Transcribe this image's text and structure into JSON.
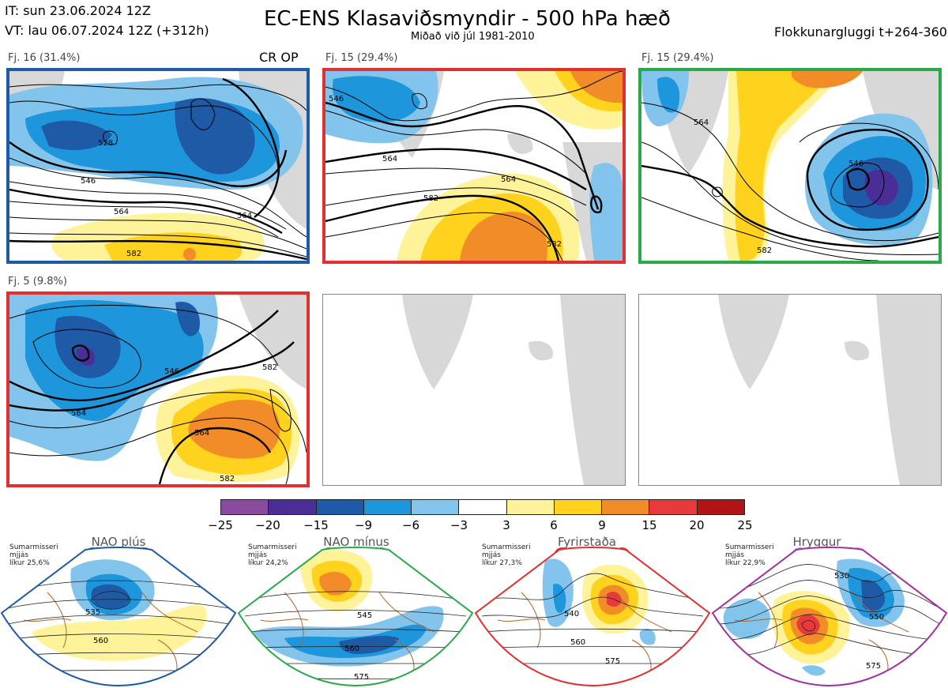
{
  "header": {
    "it_line": "IT: sun 23.06.2024 12Z",
    "vt_line": "VT: lau 06.07.2024 12Z  (+312h)",
    "title": "EC-ENS Klasaviðsmyndir - 500 hPa hæð",
    "subtitle": "Miðað við júl 1981-2010",
    "window": "Flokkunargluggi t+264-360"
  },
  "panels": [
    {
      "label": "Fj. 16 (31.4%)",
      "tag": "CR OP",
      "border_color": "#1f5aa6",
      "contours": [
        "528",
        "546",
        "564",
        "564",
        "582"
      ]
    },
    {
      "label": "Fj. 15 (29.4%)",
      "border_color": "#e03030",
      "contours": [
        "546",
        "564",
        "564",
        "582",
        "582"
      ]
    },
    {
      "label": "Fj. 15 (29.4%)",
      "border_color": "#2aa84a",
      "contours": [
        "546",
        "564",
        "582"
      ]
    },
    {
      "label": "Fj. 5 (9.8%)",
      "border_color": "#e03030",
      "contours": [
        "546",
        "564",
        "564",
        "582",
        "582"
      ]
    },
    {
      "label": "",
      "border_color": ""
    },
    {
      "label": "",
      "border_color": ""
    }
  ],
  "colorbar": {
    "colors": [
      "#8a4aa0",
      "#4a2d96",
      "#1f5aa6",
      "#1e96dc",
      "#82c4ec",
      "#ffffff",
      "#fff39a",
      "#ffd21e",
      "#f28c28",
      "#e83a3a",
      "#b01414"
    ],
    "ticks": [
      "−25",
      "−20",
      "−15",
      "−9",
      "−6",
      "−3",
      "3",
      "6",
      "9",
      "15",
      "20",
      "25"
    ]
  },
  "regimes": [
    {
      "name": "NAO plús",
      "note": "Sumarmisseri\nmjjás\nlíkur 25,6%",
      "color": "#1f5aa6",
      "contours": [
        "535",
        "560"
      ]
    },
    {
      "name": "NAO mínus",
      "note": "Sumarmisseri\nmjjás\nlíkur 24,2%",
      "color": "#2aa84a",
      "contours": [
        "545",
        "560",
        "575"
      ]
    },
    {
      "name": "Fyrirstaða",
      "note": "Sumarmisseri\nmjjás\nlíkur 27,3%",
      "color": "#e03030",
      "contours": [
        "540",
        "560",
        "575"
      ]
    },
    {
      "name": "Hryggur",
      "note": "Sumarmisseri\nmjjás\nlíkur 22,9%",
      "color": "#a030a0",
      "dot_color": "#ee82ee",
      "contours": [
        "530",
        "550",
        "575"
      ]
    }
  ]
}
